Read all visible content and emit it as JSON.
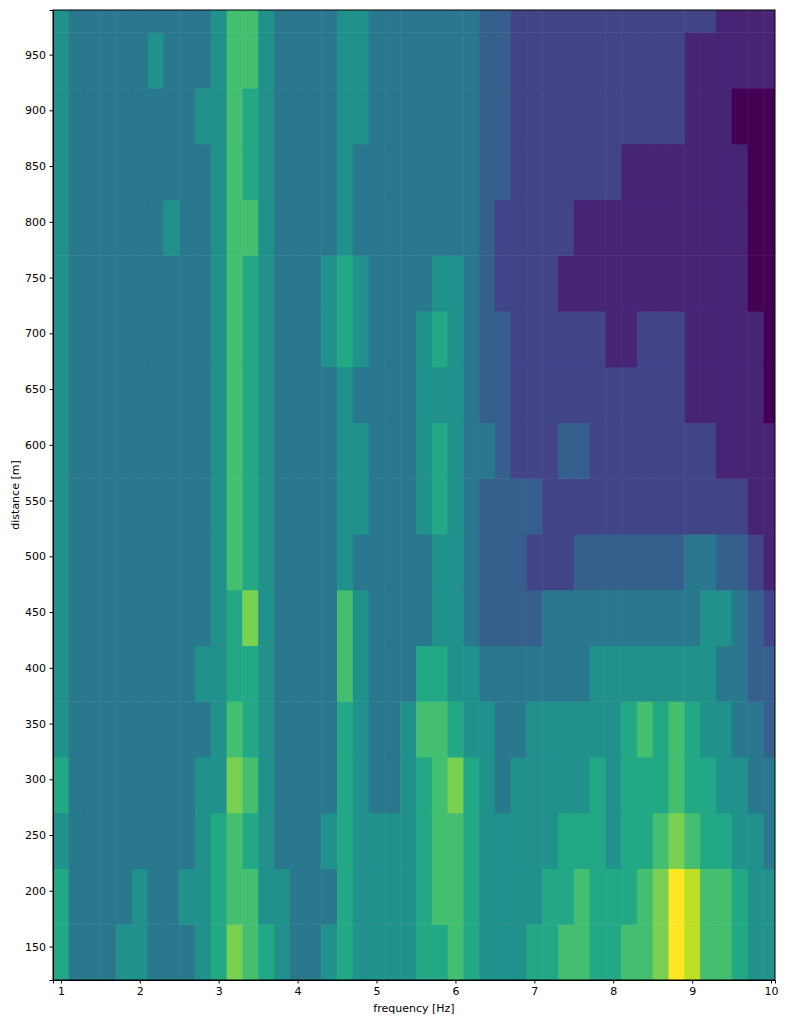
{
  "chart_data": {
    "type": "heatmap",
    "x_label": "frequency [Hz]",
    "y_label": "distance [m]",
    "xlim": [
      0.9,
      10.05
    ],
    "ylim": [
      120,
      990
    ],
    "xticks": [
      1,
      2,
      3,
      4,
      5,
      6,
      7,
      8,
      9,
      10
    ],
    "yticks": [
      150,
      200,
      250,
      300,
      350,
      400,
      450,
      500,
      550,
      600,
      650,
      700,
      750,
      800,
      850,
      900,
      950
    ],
    "grid": false,
    "color": "viridis",
    "color_range": [
      0,
      10
    ],
    "x_edges": [
      0.9,
      1.1,
      1.3,
      1.5,
      1.7,
      1.9,
      2.1,
      2.3,
      2.5,
      2.7,
      2.9,
      3.1,
      3.3,
      3.5,
      3.7,
      3.9,
      4.1,
      4.3,
      4.5,
      4.7,
      4.9,
      5.1,
      5.3,
      5.5,
      5.7,
      5.9,
      6.1,
      6.3,
      6.5,
      6.7,
      6.9,
      7.1,
      7.3,
      7.5,
      7.7,
      7.9,
      8.1,
      8.3,
      8.5,
      8.7,
      8.9,
      9.1,
      9.3,
      9.5,
      9.7,
      9.9,
      10.1
    ],
    "y_edges": [
      120,
      170,
      220,
      270,
      320,
      370,
      420,
      470,
      520,
      570,
      620,
      670,
      720,
      770,
      820,
      870,
      920,
      970,
      1020
    ],
    "cells": [
      [
        6,
        4,
        4,
        4,
        5,
        5,
        4,
        4,
        4,
        5,
        6,
        8,
        7,
        6,
        5,
        4,
        4,
        5,
        6,
        5,
        5,
        5,
        5,
        6,
        6,
        7,
        6,
        5,
        5,
        5,
        6,
        6,
        7,
        7,
        6,
        6,
        7,
        7,
        8,
        10,
        9,
        7,
        7,
        6,
        5,
        5
      ],
      [
        6,
        4,
        4,
        4,
        4,
        5,
        4,
        4,
        5,
        5,
        6,
        7,
        7,
        5,
        5,
        4,
        4,
        4,
        6,
        5,
        5,
        5,
        5,
        6,
        7,
        7,
        6,
        5,
        5,
        5,
        5,
        6,
        6,
        7,
        6,
        6,
        6,
        7,
        8,
        10,
        9,
        7,
        7,
        6,
        5,
        5
      ],
      [
        5,
        4,
        4,
        4,
        4,
        4,
        4,
        4,
        4,
        5,
        6,
        7,
        6,
        5,
        4,
        4,
        4,
        5,
        6,
        5,
        5,
        5,
        5,
        6,
        7,
        7,
        6,
        5,
        5,
        5,
        5,
        5,
        6,
        6,
        6,
        5,
        6,
        6,
        7,
        8,
        7,
        6,
        6,
        5,
        5,
        4
      ],
      [
        6,
        4,
        4,
        4,
        4,
        4,
        4,
        4,
        4,
        5,
        5,
        8,
        7,
        5,
        4,
        4,
        4,
        4,
        6,
        5,
        4,
        4,
        5,
        6,
        7,
        8,
        6,
        5,
        4,
        5,
        5,
        5,
        5,
        5,
        6,
        5,
        6,
        6,
        6,
        7,
        6,
        6,
        5,
        5,
        4,
        4
      ],
      [
        5,
        4,
        4,
        4,
        4,
        4,
        4,
        4,
        4,
        4,
        5,
        7,
        6,
        5,
        4,
        4,
        4,
        4,
        6,
        5,
        4,
        4,
        5,
        7,
        7,
        6,
        5,
        5,
        4,
        4,
        5,
        5,
        5,
        5,
        5,
        5,
        6,
        7,
        6,
        7,
        6,
        5,
        5,
        4,
        4,
        3
      ],
      [
        5,
        4,
        4,
        4,
        4,
        4,
        4,
        4,
        4,
        5,
        5,
        6,
        6,
        5,
        4,
        4,
        4,
        4,
        7,
        5,
        4,
        4,
        4,
        6,
        6,
        5,
        5,
        4,
        4,
        4,
        4,
        4,
        4,
        4,
        5,
        5,
        5,
        5,
        5,
        5,
        5,
        5,
        4,
        4,
        3,
        3
      ],
      [
        5,
        4,
        4,
        4,
        4,
        4,
        4,
        4,
        4,
        4,
        5,
        6,
        8,
        5,
        4,
        4,
        4,
        4,
        7,
        5,
        4,
        4,
        4,
        4,
        5,
        5,
        4,
        3,
        3,
        3,
        3,
        4,
        4,
        4,
        4,
        4,
        4,
        4,
        4,
        4,
        4,
        5,
        5,
        4,
        3,
        2
      ],
      [
        5,
        4,
        4,
        4,
        4,
        4,
        4,
        4,
        4,
        4,
        5,
        7,
        6,
        5,
        4,
        4,
        4,
        4,
        5,
        4,
        4,
        4,
        4,
        4,
        5,
        5,
        4,
        3,
        3,
        3,
        2,
        2,
        2,
        3,
        3,
        3,
        3,
        3,
        3,
        3,
        4,
        4,
        3,
        3,
        2,
        1
      ],
      [
        5,
        4,
        4,
        4,
        4,
        4,
        4,
        4,
        4,
        4,
        5,
        7,
        6,
        5,
        4,
        4,
        4,
        4,
        5,
        5,
        4,
        4,
        4,
        5,
        6,
        5,
        4,
        3,
        3,
        3,
        3,
        2,
        2,
        2,
        2,
        2,
        2,
        2,
        2,
        2,
        2,
        2,
        2,
        2,
        1,
        1
      ],
      [
        5,
        4,
        4,
        4,
        4,
        4,
        4,
        4,
        4,
        4,
        5,
        7,
        6,
        5,
        4,
        4,
        4,
        4,
        5,
        5,
        4,
        4,
        4,
        5,
        6,
        5,
        4,
        4,
        3,
        2,
        2,
        2,
        3,
        3,
        2,
        2,
        2,
        2,
        2,
        2,
        2,
        2,
        1,
        1,
        1,
        1
      ],
      [
        5,
        4,
        4,
        4,
        4,
        4,
        4,
        4,
        4,
        4,
        5,
        7,
        6,
        5,
        4,
        4,
        4,
        4,
        5,
        4,
        4,
        4,
        4,
        5,
        5,
        5,
        4,
        3,
        3,
        2,
        2,
        2,
        2,
        2,
        2,
        2,
        2,
        2,
        2,
        2,
        1,
        1,
        1,
        1,
        1,
        0
      ],
      [
        5,
        4,
        4,
        4,
        4,
        4,
        4,
        4,
        4,
        4,
        5,
        7,
        6,
        5,
        4,
        4,
        4,
        5,
        6,
        5,
        4,
        4,
        4,
        5,
        6,
        5,
        4,
        3,
        3,
        2,
        2,
        2,
        2,
        2,
        2,
        1,
        1,
        2,
        2,
        2,
        1,
        1,
        1,
        1,
        1,
        0
      ],
      [
        5,
        4,
        4,
        4,
        4,
        4,
        4,
        4,
        4,
        4,
        5,
        7,
        6,
        5,
        4,
        4,
        4,
        5,
        6,
        5,
        4,
        4,
        4,
        4,
        5,
        5,
        4,
        3,
        2,
        2,
        2,
        2,
        1,
        1,
        1,
        1,
        1,
        1,
        1,
        1,
        1,
        1,
        1,
        1,
        0,
        0
      ],
      [
        5,
        4,
        4,
        4,
        4,
        4,
        4,
        5,
        4,
        4,
        5,
        7,
        7,
        5,
        4,
        4,
        4,
        4,
        5,
        4,
        4,
        4,
        4,
        4,
        4,
        4,
        4,
        3,
        2,
        2,
        2,
        2,
        2,
        1,
        1,
        1,
        1,
        1,
        1,
        1,
        1,
        1,
        1,
        1,
        0,
        0
      ],
      [
        5,
        4,
        4,
        4,
        4,
        4,
        4,
        4,
        4,
        4,
        5,
        7,
        6,
        5,
        4,
        4,
        4,
        4,
        5,
        4,
        4,
        4,
        4,
        4,
        4,
        4,
        4,
        3,
        3,
        2,
        2,
        2,
        2,
        2,
        2,
        2,
        1,
        1,
        1,
        1,
        1,
        1,
        1,
        1,
        0,
        0
      ],
      [
        5,
        4,
        4,
        4,
        4,
        4,
        4,
        4,
        4,
        5,
        5,
        7,
        6,
        5,
        4,
        4,
        4,
        4,
        5,
        5,
        4,
        4,
        4,
        4,
        4,
        4,
        4,
        3,
        3,
        2,
        2,
        2,
        2,
        2,
        2,
        2,
        2,
        2,
        2,
        2,
        1,
        1,
        1,
        0,
        0,
        0
      ],
      [
        5,
        4,
        4,
        4,
        4,
        4,
        5,
        4,
        4,
        4,
        5,
        7,
        7,
        5,
        4,
        4,
        4,
        4,
        5,
        5,
        4,
        4,
        4,
        4,
        4,
        4,
        4,
        3,
        3,
        2,
        2,
        2,
        2,
        2,
        2,
        2,
        2,
        2,
        2,
        2,
        1,
        1,
        1,
        1,
        1,
        1
      ],
      [
        5,
        4,
        4,
        4,
        4,
        4,
        4,
        4,
        4,
        4,
        5,
        7,
        7,
        5,
        4,
        4,
        4,
        4,
        5,
        5,
        4,
        4,
        4,
        4,
        4,
        4,
        4,
        3,
        3,
        2,
        2,
        2,
        2,
        2,
        2,
        2,
        2,
        2,
        2,
        2,
        2,
        2,
        1,
        1,
        1,
        1
      ]
    ]
  }
}
